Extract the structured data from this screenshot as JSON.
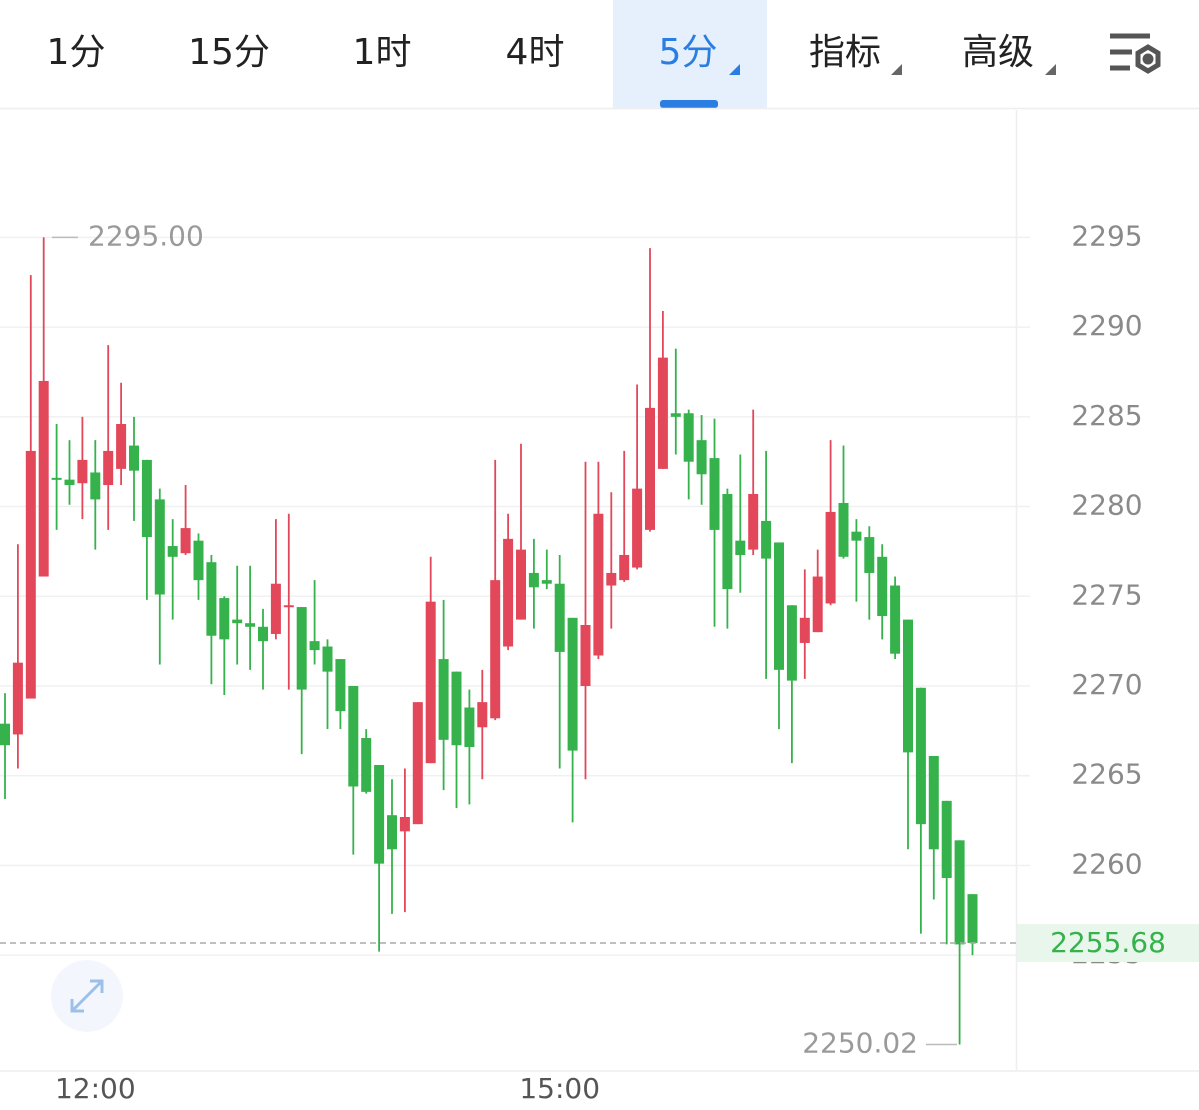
{
  "toolbar": {
    "tabs": [
      "1分",
      "15分",
      "1时",
      "4时",
      "5分",
      "指标",
      "高级"
    ]
  },
  "chart_data": {
    "type": "candlestick",
    "categories": [
      null,
      null,
      null,
      null,
      null,
      null,
      null,
      "12:00",
      null,
      null,
      null,
      null,
      null,
      null,
      null,
      null,
      null,
      null,
      null,
      null,
      null,
      null,
      null,
      null,
      null,
      null,
      null,
      null,
      null,
      null,
      null,
      null,
      null,
      null,
      null,
      null,
      null,
      null,
      null,
      null,
      null,
      null,
      null,
      "15:00",
      null,
      null,
      null,
      null,
      null,
      null,
      null,
      null,
      null,
      null,
      null,
      null,
      null,
      null,
      null,
      null,
      null,
      null,
      null,
      null,
      null,
      null,
      null,
      null,
      null,
      null,
      null,
      null,
      null,
      null,
      null,
      null
    ],
    "open": [
      2267.9,
      2267.3,
      2269.3,
      2276.1,
      2281.6,
      2281.5,
      2281.3,
      2281.9,
      2281.2,
      2282.1,
      2283.4,
      2282.6,
      2280.4,
      2277.8,
      2277.4,
      2278.1,
      2276.9,
      2274.9,
      2273.7,
      2273.5,
      2273.3,
      2272.9,
      2274.4,
      2274.4,
      2272.5,
      2272.2,
      2271.5,
      2270.0,
      2267.1,
      2265.6,
      2262.8,
      2261.9,
      2262.3,
      2265.7,
      2271.5,
      2270.8,
      2268.8,
      2267.7,
      2268.2,
      2272.2,
      2273.7,
      2276.3,
      2275.9,
      2275.7,
      2273.8,
      2270.0,
      2271.7,
      2275.6,
      2275.9,
      2276.6,
      2278.7,
      2282.1,
      2285.2,
      2285.2,
      2283.7,
      2282.7,
      2280.7,
      2278.1,
      2277.6,
      2279.2,
      2278.0,
      2274.5,
      2272.4,
      2273.0,
      2274.6,
      2280.2,
      2278.6,
      2278.3,
      2277.2,
      2275.6,
      2273.7,
      2269.9,
      2266.1,
      2263.6,
      2261.4,
      2258.4
    ],
    "high": [
      2269.6,
      2277.9,
      2292.9,
      2295.0,
      2284.6,
      2283.7,
      2285.0,
      2283.7,
      2289.0,
      2286.9,
      2285.0,
      2282.6,
      2281.0,
      2279.3,
      2281.2,
      2278.5,
      2277.3,
      2275.0,
      2276.7,
      2276.7,
      2274.3,
      2279.3,
      2279.6,
      2274.4,
      2275.9,
      2272.6,
      2271.5,
      2270.0,
      2267.6,
      2265.6,
      2264.8,
      2265.4,
      2269.1,
      2277.2,
      2274.8,
      2270.8,
      2269.8,
      2270.9,
      2282.6,
      2279.6,
      2283.5,
      2278.2,
      2277.6,
      2277.3,
      2273.8,
      2282.5,
      2282.5,
      2280.8,
      2283.1,
      2286.8,
      2294.4,
      2290.9,
      2288.8,
      2285.4,
      2285.1,
      2284.9,
      2281.0,
      2282.9,
      2285.4,
      2283.1,
      2278.0,
      2274.5,
      2276.5,
      2277.6,
      2283.7,
      2283.4,
      2279.3,
      2278.9,
      2277.9,
      2276.1,
      2273.7,
      2269.9,
      2266.1,
      2263.6,
      2261.4,
      2258.4
    ],
    "low": [
      2263.7,
      2265.4,
      2269.3,
      2276.1,
      2278.7,
      2280.1,
      2279.3,
      2277.6,
      2278.7,
      2281.2,
      2279.2,
      2274.8,
      2271.2,
      2273.7,
      2277.3,
      2274.8,
      2270.1,
      2269.5,
      2271.2,
      2270.9,
      2269.8,
      2272.6,
      2269.8,
      2266.2,
      2271.2,
      2267.6,
      2267.6,
      2260.6,
      2264.0,
      2255.2,
      2257.3,
      2257.4,
      2262.3,
      2265.7,
      2264.2,
      2263.2,
      2263.4,
      2264.8,
      2268.1,
      2272.0,
      2273.7,
      2273.2,
      2275.4,
      2265.4,
      2262.4,
      2264.8,
      2271.5,
      2273.2,
      2275.8,
      2276.5,
      2278.6,
      2282.1,
      2282.9,
      2280.4,
      2280.1,
      2273.3,
      2273.2,
      2275.2,
      2277.3,
      2270.4,
      2267.6,
      2265.7,
      2270.4,
      2273.0,
      2274.5,
      2277.1,
      2274.7,
      2273.7,
      2272.6,
      2271.5,
      2260.9,
      2256.2,
      2258.1,
      2255.6,
      2250.02,
      2255.0
    ],
    "close": [
      2266.7,
      2271.3,
      2283.1,
      2287.0,
      2281.5,
      2281.2,
      2282.6,
      2280.4,
      2283.1,
      2284.6,
      2282.0,
      2278.3,
      2275.1,
      2277.2,
      2278.8,
      2275.9,
      2272.8,
      2272.6,
      2273.5,
      2273.3,
      2272.5,
      2275.7,
      2274.5,
      2269.8,
      2272.0,
      2270.8,
      2268.6,
      2264.4,
      2264.1,
      2260.1,
      2260.9,
      2262.7,
      2269.1,
      2274.7,
      2267.0,
      2266.7,
      2266.6,
      2269.1,
      2275.9,
      2278.2,
      2277.6,
      2275.5,
      2275.7,
      2271.9,
      2266.4,
      2273.4,
      2279.6,
      2276.3,
      2277.3,
      2281.0,
      2285.5,
      2288.3,
      2285.0,
      2282.5,
      2281.8,
      2278.7,
      2275.4,
      2277.3,
      2280.7,
      2277.1,
      2270.9,
      2270.3,
      2273.8,
      2276.1,
      2279.7,
      2277.2,
      2278.1,
      2276.3,
      2273.9,
      2271.8,
      2266.3,
      2262.3,
      2260.9,
      2259.3,
      2255.6,
      2255.68
    ],
    "up_color": "#e2475a",
    "down_color": "#35b24b",
    "ylim": [
      2248.6,
      2302.1
    ],
    "yticks": [
      2255,
      2260,
      2265,
      2270,
      2275,
      2280,
      2285,
      2290,
      2295
    ],
    "grid": true,
    "high_label": {
      "value": 2295.0,
      "label": "2295.00"
    },
    "low_label": {
      "value": 2250.02,
      "label": "2250.02"
    },
    "last_price": {
      "value": 2255.68,
      "label": "2255.68"
    }
  }
}
